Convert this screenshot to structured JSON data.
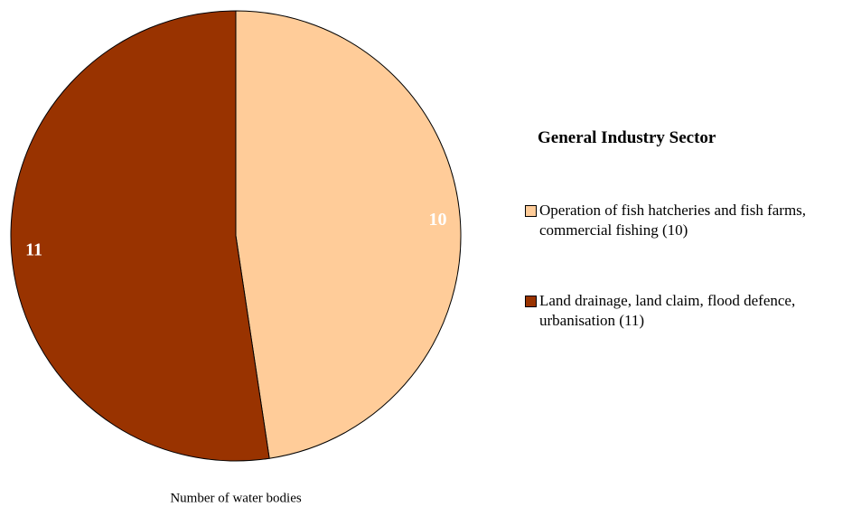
{
  "chart_data": {
    "type": "pie",
    "categories": [
      "Operation of fish hatcheries and fish farms, commercial fishing  (10)",
      "Land drainage, land claim, flood defence, urbanisation  (11)"
    ],
    "values": [
      10,
      11
    ],
    "colors": [
      "#ffcc99",
      "#993300"
    ],
    "label_colors": [
      "#ffffff",
      "#ffffff"
    ],
    "legend_title": "General Industry Sector",
    "xlabel": "Number of water bodies"
  }
}
